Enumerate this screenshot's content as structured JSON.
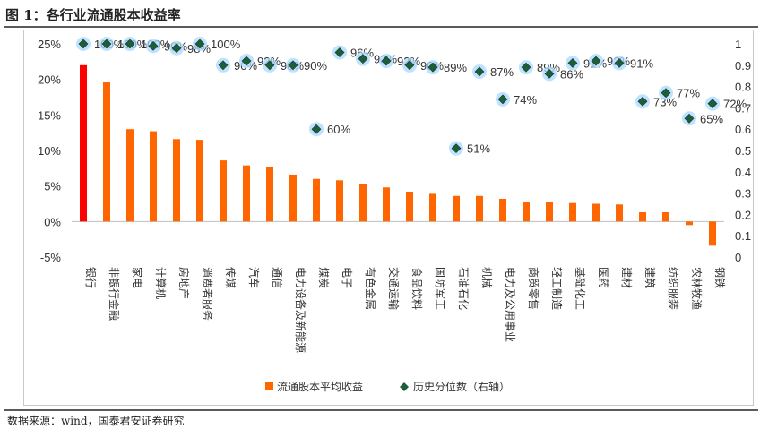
{
  "title": "图 1：各行业流通股本收益率",
  "source": "数据来源：wind，国泰君安证券研究",
  "chart_data": {
    "type": "bar",
    "categories": [
      "银行",
      "非银行金融",
      "家电",
      "计算机",
      "房地产",
      "消费者服务",
      "传媒",
      "汽车",
      "通信",
      "电力设备及新能源",
      "煤炭",
      "电子",
      "有色金属",
      "交通运输",
      "食品饮料",
      "国防军工",
      "石油石化",
      "机械",
      "电力及公用事业",
      "商贸零售",
      "轻工制造",
      "基础化工",
      "医药",
      "建材",
      "建筑",
      "纺织服装",
      "农林牧渔",
      "钢铁"
    ],
    "series": [
      {
        "name": "流通股本平均收益",
        "type": "bar",
        "axis": "left",
        "color": "#ff6600",
        "highlight_color": "#ff0000",
        "values": [
          0.22,
          0.197,
          0.13,
          0.127,
          0.116,
          0.115,
          0.086,
          0.079,
          0.077,
          0.066,
          0.06,
          0.058,
          0.053,
          0.048,
          0.042,
          0.039,
          0.036,
          0.036,
          0.032,
          0.027,
          0.027,
          0.026,
          0.025,
          0.024,
          0.013,
          0.013,
          -0.005,
          -0.034
        ]
      },
      {
        "name": "历史分位数（右轴）",
        "type": "scatter",
        "axis": "right",
        "color": "#1f5c3a",
        "values": [
          1.0,
          1.0,
          1.0,
          0.99,
          0.98,
          1.0,
          0.9,
          0.92,
          0.9,
          0.9,
          0.6,
          0.96,
          0.93,
          0.92,
          0.9,
          0.89,
          0.51,
          0.87,
          0.74,
          0.89,
          0.86,
          0.91,
          0.92,
          0.91,
          0.73,
          0.77,
          0.65,
          0.72
        ],
        "labels": [
          "100%",
          "100%",
          "100%",
          "99%",
          "98%",
          "100%",
          "90%",
          "92%",
          "90%",
          "90%",
          "60%",
          "96%",
          "93%",
          "92%",
          "90%",
          "89%",
          "51%",
          "87%",
          "74%",
          "89%",
          "86%",
          "91%",
          "92%",
          "91%",
          "73%",
          "77%",
          "65%",
          "72%"
        ]
      }
    ],
    "y_left": {
      "ticks": [
        "25%",
        "20%",
        "15%",
        "10%",
        "5%",
        "0%",
        "-5%"
      ],
      "min": -0.05,
      "max": 0.25
    },
    "y_right": {
      "ticks": [
        "1",
        "0.9",
        "0.8",
        "0.7",
        "0.6",
        "0.5",
        "0.4",
        "0.3",
        "0.2",
        "0.1",
        "0"
      ],
      "min": 0,
      "max": 1
    },
    "legend_position": "bottom",
    "grid": false
  }
}
